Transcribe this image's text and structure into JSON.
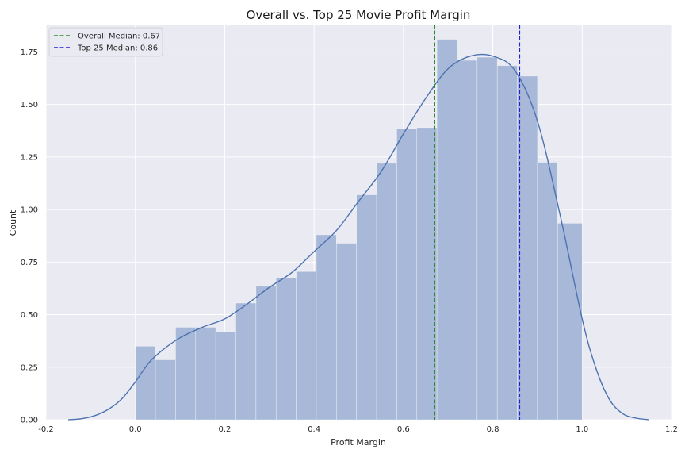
{
  "chart_data": {
    "type": "histogram",
    "title": "Overall vs. Top 25 Movie Profit Margin",
    "xlabel": "Profit Margin",
    "ylabel": "Count",
    "xlim": [
      -0.2,
      1.2
    ],
    "ylim": [
      0,
      1.88
    ],
    "grid": true,
    "legend_placement": "top-left",
    "x_ticks": [
      "-0.2",
      "0.0",
      "0.2",
      "0.4",
      "0.6",
      "0.8",
      "1.0",
      "1.2"
    ],
    "y_ticks": [
      "0.00",
      "0.25",
      "0.50",
      "0.75",
      "1.00",
      "1.25",
      "1.50",
      "1.75"
    ],
    "bin_width": 0.045,
    "bins": [
      {
        "x0": 0.0,
        "x1": 0.045,
        "y": 0.35
      },
      {
        "x0": 0.045,
        "x1": 0.09,
        "y": 0.285
      },
      {
        "x0": 0.09,
        "x1": 0.135,
        "y": 0.44
      },
      {
        "x0": 0.135,
        "x1": 0.18,
        "y": 0.44
      },
      {
        "x0": 0.18,
        "x1": 0.225,
        "y": 0.42
      },
      {
        "x0": 0.225,
        "x1": 0.27,
        "y": 0.555
      },
      {
        "x0": 0.27,
        "x1": 0.315,
        "y": 0.635
      },
      {
        "x0": 0.315,
        "x1": 0.36,
        "y": 0.675
      },
      {
        "x0": 0.36,
        "x1": 0.405,
        "y": 0.705
      },
      {
        "x0": 0.405,
        "x1": 0.45,
        "y": 0.88
      },
      {
        "x0": 0.45,
        "x1": 0.495,
        "y": 0.84
      },
      {
        "x0": 0.495,
        "x1": 0.54,
        "y": 1.07
      },
      {
        "x0": 0.54,
        "x1": 0.585,
        "y": 1.22
      },
      {
        "x0": 0.585,
        "x1": 0.63,
        "y": 1.385
      },
      {
        "x0": 0.63,
        "x1": 0.675,
        "y": 1.39
      },
      {
        "x0": 0.675,
        "x1": 0.72,
        "y": 1.81
      },
      {
        "x0": 0.72,
        "x1": 0.765,
        "y": 1.71
      },
      {
        "x0": 0.765,
        "x1": 0.81,
        "y": 1.725
      },
      {
        "x0": 0.81,
        "x1": 0.855,
        "y": 1.685
      },
      {
        "x0": 0.855,
        "x1": 0.9,
        "y": 1.635
      },
      {
        "x0": 0.9,
        "x1": 0.945,
        "y": 1.225
      },
      {
        "x0": 0.945,
        "x1": 1.0,
        "y": 0.935
      }
    ],
    "kde": {
      "x": [
        -0.15,
        -0.12,
        -0.09,
        -0.06,
        -0.03,
        0.0,
        0.03,
        0.06,
        0.1,
        0.15,
        0.2,
        0.25,
        0.3,
        0.35,
        0.4,
        0.45,
        0.5,
        0.55,
        0.6,
        0.65,
        0.7,
        0.75,
        0.8,
        0.85,
        0.9,
        0.95,
        1.0,
        1.03,
        1.06,
        1.09,
        1.12,
        1.15
      ],
      "y": [
        0.0,
        0.005,
        0.02,
        0.05,
        0.1,
        0.18,
        0.27,
        0.33,
        0.39,
        0.44,
        0.48,
        0.55,
        0.63,
        0.7,
        0.8,
        0.9,
        1.04,
        1.18,
        1.36,
        1.53,
        1.67,
        1.73,
        1.73,
        1.66,
        1.42,
        0.98,
        0.48,
        0.25,
        0.1,
        0.03,
        0.008,
        0.0
      ]
    },
    "median_lines": [
      {
        "label": "Overall Median: 0.67",
        "x": 0.67,
        "color": "#2e8b2e"
      },
      {
        "label": "Top 25 Median: 0.86",
        "x": 0.86,
        "color": "#1f1fd6"
      }
    ],
    "colors": {
      "plot_bg": "#eaeaf2",
      "grid": "#ffffff",
      "bar": "#a8b8d8",
      "kde": "#4c72b0"
    }
  }
}
